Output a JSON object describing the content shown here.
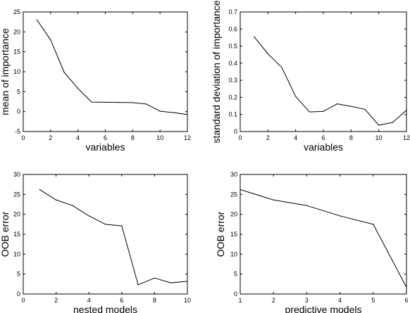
{
  "chart_data": [
    {
      "type": "line",
      "xlabel": "variables",
      "ylabel": "mean of importance",
      "xlim": [
        0,
        12
      ],
      "ylim": [
        -5,
        25
      ],
      "xticks": [
        0,
        2,
        4,
        6,
        8,
        10,
        12
      ],
      "yticks": [
        -5,
        0,
        5,
        10,
        15,
        20,
        25
      ],
      "grid": false,
      "x": [
        1,
        2,
        3,
        4,
        5,
        6,
        7,
        8,
        9,
        10,
        11,
        12
      ],
      "y": [
        23.0,
        18.0,
        9.8,
        5.8,
        2.4,
        2.35,
        2.3,
        2.25,
        1.9,
        0.1,
        -0.25,
        -0.75
      ]
    },
    {
      "type": "line",
      "xlabel": "variables",
      "ylabel": "standard deviation of importance",
      "xlim": [
        0,
        12
      ],
      "ylim": [
        0,
        0.7
      ],
      "xticks": [
        0,
        2,
        4,
        6,
        8,
        10,
        12
      ],
      "yticks": [
        0,
        0.1,
        0.2,
        0.3,
        0.4,
        0.5,
        0.6,
        0.7
      ],
      "grid": false,
      "x": [
        1,
        2,
        3,
        4,
        5,
        6,
        7,
        8,
        9,
        10,
        11,
        12
      ],
      "y": [
        0.555,
        0.455,
        0.375,
        0.205,
        0.115,
        0.118,
        0.162,
        0.147,
        0.13,
        0.037,
        0.053,
        0.125
      ]
    },
    {
      "type": "line",
      "xlabel": "nested models",
      "ylabel": "OOB error",
      "xlim": [
        0,
        10
      ],
      "ylim": [
        0,
        30
      ],
      "xticks": [
        0,
        2,
        4,
        6,
        8,
        10
      ],
      "yticks": [
        0,
        5,
        10,
        15,
        20,
        25,
        30
      ],
      "grid": false,
      "x": [
        1,
        2,
        3,
        4,
        5,
        6,
        7,
        8,
        9,
        10
      ],
      "y": [
        26.2,
        23.6,
        22.2,
        19.6,
        17.5,
        17.1,
        2.3,
        4.0,
        2.8,
        3.2
      ]
    },
    {
      "type": "line",
      "xlabel": "predictive models",
      "ylabel": "OOB error",
      "xlim": [
        1,
        6
      ],
      "ylim": [
        0,
        30
      ],
      "xticks": [
        1,
        2,
        3,
        4,
        5,
        6
      ],
      "yticks": [
        0,
        5,
        10,
        15,
        20,
        25,
        30
      ],
      "grid": false,
      "x": [
        1,
        2,
        3,
        4,
        5,
        6
      ],
      "y": [
        26.2,
        23.6,
        22.2,
        19.6,
        17.5,
        1.7
      ]
    }
  ]
}
